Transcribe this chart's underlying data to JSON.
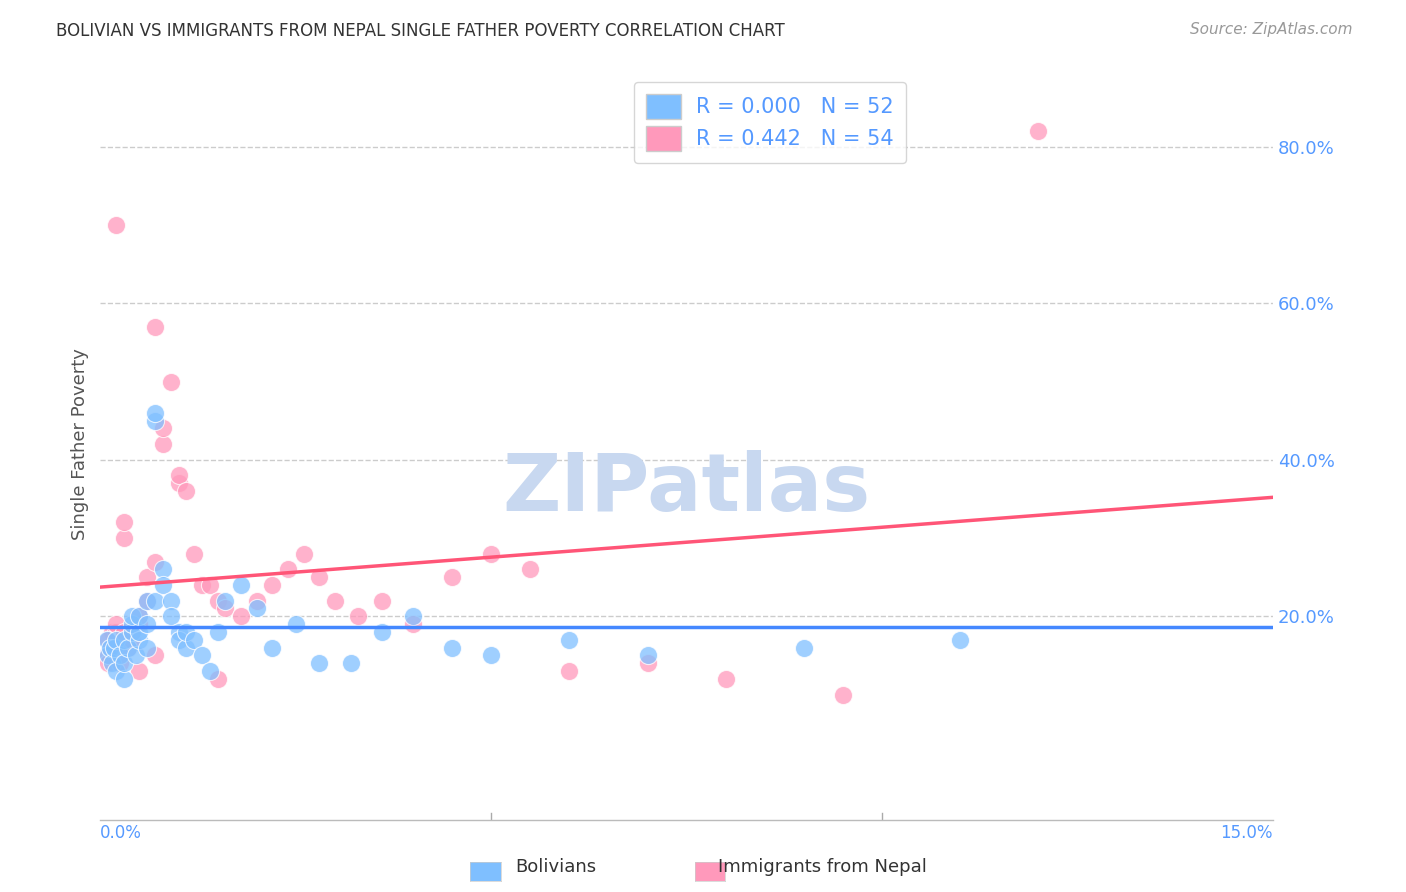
{
  "title": "BOLIVIAN VS IMMIGRANTS FROM NEPAL SINGLE FATHER POVERTY CORRELATION CHART",
  "source": "Source: ZipAtlas.com",
  "ylabel": "Single Father Poverty",
  "right_ytick_vals": [
    0.8,
    0.6,
    0.4,
    0.2
  ],
  "xmin": 0.0,
  "xmax": 0.15,
  "ymin": -0.06,
  "ymax": 0.9,
  "r_bolivian": 0.0,
  "r_nepal": 0.442,
  "n_bolivian": 52,
  "n_nepal": 54,
  "color_bolivian": "#7fbfff",
  "color_nepal": "#ff99bb",
  "line_color_bolivian": "#4488ff",
  "line_color_nepal": "#ff5577",
  "watermark_color": "#c8d8f0",
  "background_color": "#ffffff",
  "grid_color": "#cccccc",
  "axis_label_color": "#5599ff",
  "title_color": "#333333",
  "bolivian_x": [
    0.0008,
    0.001,
    0.0012,
    0.0015,
    0.0018,
    0.002,
    0.002,
    0.0025,
    0.003,
    0.003,
    0.003,
    0.0035,
    0.004,
    0.004,
    0.004,
    0.0045,
    0.005,
    0.005,
    0.005,
    0.006,
    0.006,
    0.006,
    0.007,
    0.007,
    0.007,
    0.008,
    0.008,
    0.009,
    0.009,
    0.01,
    0.01,
    0.011,
    0.011,
    0.012,
    0.013,
    0.014,
    0.015,
    0.016,
    0.018,
    0.02,
    0.022,
    0.025,
    0.028,
    0.032,
    0.036,
    0.04,
    0.045,
    0.05,
    0.06,
    0.07,
    0.09,
    0.11
  ],
  "bolivian_y": [
    0.17,
    0.15,
    0.16,
    0.14,
    0.16,
    0.17,
    0.13,
    0.15,
    0.17,
    0.12,
    0.14,
    0.16,
    0.18,
    0.19,
    0.2,
    0.15,
    0.17,
    0.18,
    0.2,
    0.22,
    0.16,
    0.19,
    0.22,
    0.45,
    0.46,
    0.26,
    0.24,
    0.22,
    0.2,
    0.18,
    0.17,
    0.16,
    0.18,
    0.17,
    0.15,
    0.13,
    0.18,
    0.22,
    0.24,
    0.21,
    0.16,
    0.19,
    0.14,
    0.14,
    0.18,
    0.2,
    0.16,
    0.15,
    0.17,
    0.15,
    0.16,
    0.17
  ],
  "nepal_x": [
    0.0008,
    0.001,
    0.0012,
    0.0015,
    0.002,
    0.002,
    0.0025,
    0.003,
    0.003,
    0.0035,
    0.004,
    0.004,
    0.005,
    0.005,
    0.006,
    0.006,
    0.007,
    0.007,
    0.008,
    0.008,
    0.009,
    0.01,
    0.01,
    0.011,
    0.012,
    0.013,
    0.014,
    0.015,
    0.016,
    0.018,
    0.02,
    0.022,
    0.024,
    0.026,
    0.028,
    0.03,
    0.033,
    0.036,
    0.04,
    0.045,
    0.05,
    0.055,
    0.06,
    0.07,
    0.08,
    0.095,
    0.001,
    0.002,
    0.003,
    0.004,
    0.005,
    0.007,
    0.015,
    0.12
  ],
  "nepal_y": [
    0.15,
    0.14,
    0.16,
    0.18,
    0.7,
    0.18,
    0.14,
    0.3,
    0.32,
    0.16,
    0.18,
    0.17,
    0.19,
    0.2,
    0.22,
    0.25,
    0.27,
    0.57,
    0.42,
    0.44,
    0.5,
    0.37,
    0.38,
    0.36,
    0.28,
    0.24,
    0.24,
    0.22,
    0.21,
    0.2,
    0.22,
    0.24,
    0.26,
    0.28,
    0.25,
    0.22,
    0.2,
    0.22,
    0.19,
    0.25,
    0.28,
    0.26,
    0.13,
    0.14,
    0.12,
    0.1,
    0.17,
    0.19,
    0.18,
    0.18,
    0.13,
    0.15,
    0.12,
    0.82
  ]
}
